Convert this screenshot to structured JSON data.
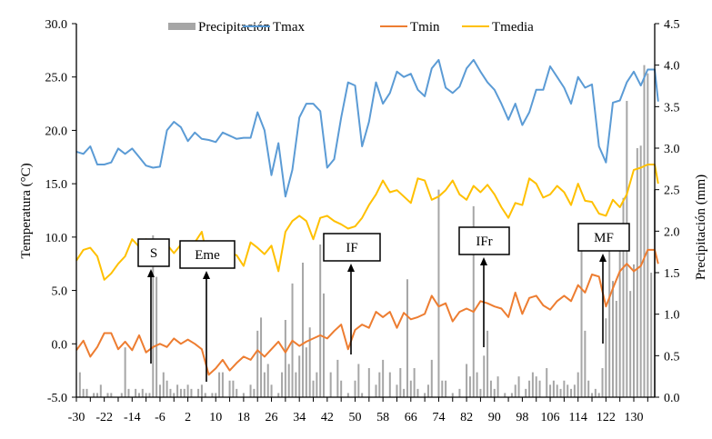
{
  "chart_data": {
    "type": "line",
    "title": "",
    "xlabel": "",
    "ylabel": "Temperatura (°C)",
    "y2label": "Precipitación (mm)",
    "xlim": [
      -30,
      137
    ],
    "ylim": [
      -5,
      30
    ],
    "y2lim": [
      0,
      4.5
    ],
    "x_ticks": [
      "-30",
      "-22",
      "-14",
      "-6",
      "2",
      "10",
      "18",
      "26",
      "34",
      "42",
      "50",
      "58",
      "66",
      "74",
      "82",
      "90",
      "98",
      "106",
      "114",
      "122",
      "130"
    ],
    "y_ticks": [
      "-5.0",
      "0.0",
      "5.0",
      "10.0",
      "15.0",
      "20.0",
      "25.0",
      "30.0"
    ],
    "y2_ticks": [
      "0.0",
      "0.5",
      "1.0",
      "1.5",
      "2.0",
      "2.5",
      "3.0",
      "3.5",
      "4.0",
      "4.5"
    ],
    "legend": [
      "Precipitación",
      "Tmax",
      "Tmin",
      "Tmedia"
    ],
    "legend_position": "top",
    "colors": {
      "Precipitación": "#a6a6a6",
      "Tmax": "#5b9bd5",
      "Tmin": "#ed7d31",
      "Tmedia": "#ffc000"
    },
    "x": [
      -30,
      -28,
      -26,
      -24,
      -22,
      -20,
      -18,
      -16,
      -14,
      -12,
      -10,
      -8,
      -6,
      -4,
      -2,
      0,
      2,
      4,
      6,
      8,
      10,
      12,
      14,
      16,
      18,
      20,
      22,
      24,
      26,
      28,
      30,
      32,
      34,
      36,
      38,
      40,
      42,
      44,
      46,
      48,
      50,
      52,
      54,
      56,
      58,
      60,
      62,
      64,
      66,
      68,
      70,
      72,
      74,
      76,
      78,
      80,
      82,
      84,
      86,
      88,
      90,
      92,
      94,
      96,
      98,
      100,
      102,
      104,
      106,
      108,
      110,
      112,
      114,
      116,
      118,
      120,
      122,
      124,
      126,
      128,
      130,
      132,
      134,
      136,
      137
    ],
    "series": [
      {
        "name": "Tmax",
        "axis": "left",
        "values": [
          18,
          17.8,
          18.5,
          16.8,
          16.8,
          17,
          18.3,
          17.8,
          18.3,
          17.5,
          16.7,
          16.5,
          16.6,
          20,
          20.8,
          20.3,
          19,
          19.8,
          19.2,
          19.1,
          18.9,
          19.8,
          19.5,
          19.2,
          19.3,
          19.3,
          21.7,
          20,
          15.8,
          18.8,
          13.8,
          16.3,
          21.2,
          22.5,
          22.5,
          21.8,
          16.5,
          17.3,
          21.2,
          24.5,
          24.2,
          18.5,
          20.8,
          24.5,
          22.5,
          23.5,
          25.5,
          25,
          25.3,
          23.8,
          23.2,
          25.8,
          26.6,
          24,
          23.5,
          24.1,
          25.8,
          26.6,
          25.5,
          24.5,
          23.8,
          22.5,
          21,
          22.5,
          20.5,
          21.7,
          23.8,
          23.8,
          26,
          25,
          24,
          22.5,
          25,
          24,
          24.3,
          18.5,
          17,
          22.6,
          22.8,
          24.5,
          25.5,
          24.2,
          25.7,
          25.7,
          22.7
        ]
      },
      {
        "name": "Tmin",
        "axis": "left",
        "values": [
          -0.6,
          0.3,
          -1.2,
          -0.3,
          1,
          1,
          -0.5,
          0.2,
          -0.6,
          0.8,
          -0.8,
          -0.3,
          0,
          -0.3,
          0.5,
          0,
          0.4,
          0,
          -0.5,
          -2.9,
          -2.3,
          -1.5,
          -2.5,
          -1.8,
          -1.2,
          -1.5,
          -0.6,
          -1.2,
          -0.5,
          0.2,
          -0.8,
          0.3,
          -0.2,
          0.2,
          0.5,
          0.8,
          0.5,
          1.2,
          1.8,
          -0.5,
          1.3,
          1.8,
          1.5,
          3,
          2.5,
          3,
          1.5,
          2.9,
          2.3,
          2.5,
          2.8,
          4.5,
          3.5,
          3.8,
          2.1,
          3,
          3.3,
          3,
          4,
          3.8,
          3.5,
          3.3,
          2.5,
          4.8,
          2.8,
          4.3,
          4.5,
          3.6,
          3.2,
          4,
          4.5,
          4,
          5.5,
          4.8,
          6.5,
          6.3,
          3.5,
          5.2,
          6.8,
          7.5,
          6.8,
          7.3,
          8.8,
          8.8,
          7.5
        ]
      },
      {
        "name": "Tmedia",
        "axis": "left",
        "values": [
          7.8,
          8.8,
          9,
          8.2,
          6,
          6.6,
          7.5,
          8.2,
          9.8,
          9.1,
          9.8,
          9.4,
          9,
          9.3,
          8.5,
          9.3,
          9.2,
          9.5,
          10.5,
          7.5,
          9.2,
          9,
          8.5,
          8.3,
          7.3,
          9.5,
          9,
          8.4,
          9.2,
          6.8,
          10.5,
          11.5,
          12,
          11.5,
          9.8,
          11.8,
          12,
          11.5,
          11.2,
          10.8,
          11,
          11.8,
          13,
          14,
          15.3,
          14.2,
          14.4,
          13.8,
          13.2,
          15.5,
          15.3,
          13.5,
          13.8,
          14.4,
          15.3,
          14,
          13.5,
          14.8,
          14.2,
          14.9,
          14,
          12.8,
          11.8,
          13.2,
          13,
          15.5,
          15,
          13.7,
          14,
          14.8,
          14.2,
          13,
          15,
          13.4,
          13.3,
          12.2,
          12,
          13.5,
          12.8,
          14,
          16.3,
          16.5,
          16.8,
          16.8,
          15
        ]
      }
    ],
    "precipitation": {
      "name": "Precipitación",
      "axis": "right",
      "type": "bar",
      "points": [
        [
          -29,
          0.3
        ],
        [
          -28,
          0.1
        ],
        [
          -27,
          0.1
        ],
        [
          -25,
          0.05
        ],
        [
          -24,
          0.05
        ],
        [
          -23,
          0.15
        ],
        [
          -21,
          0.05
        ],
        [
          -20,
          0.05
        ],
        [
          -17,
          0.05
        ],
        [
          -16,
          0.6
        ],
        [
          -15,
          0.1
        ],
        [
          -13,
          0.1
        ],
        [
          -12,
          0.05
        ],
        [
          -11,
          0.1
        ],
        [
          -10,
          0.05
        ],
        [
          -9,
          0.05
        ],
        [
          -8,
          1.95
        ],
        [
          -7,
          1.45
        ],
        [
          -6,
          0.15
        ],
        [
          -5,
          0.3
        ],
        [
          -4,
          0.2
        ],
        [
          -3,
          0.1
        ],
        [
          -2,
          0.05
        ],
        [
          -1,
          0.15
        ],
        [
          0,
          0.1
        ],
        [
          1,
          0.1
        ],
        [
          2,
          0.15
        ],
        [
          3,
          0.1
        ],
        [
          5,
          0.1
        ],
        [
          6,
          0.15
        ],
        [
          7,
          0.05
        ],
        [
          9,
          0.05
        ],
        [
          10,
          0.05
        ],
        [
          11,
          0.3
        ],
        [
          12,
          0.3
        ],
        [
          14,
          0.2
        ],
        [
          15,
          0.2
        ],
        [
          16,
          0.1
        ],
        [
          18,
          0.05
        ],
        [
          20,
          0.15
        ],
        [
          21,
          0.1
        ],
        [
          22,
          0.8
        ],
        [
          23,
          0.96
        ],
        [
          24,
          0.3
        ],
        [
          25,
          0.4
        ],
        [
          26,
          0.15
        ],
        [
          28,
          0.05
        ],
        [
          29,
          0.3
        ],
        [
          30,
          0.93
        ],
        [
          31,
          0.4
        ],
        [
          32,
          1.37
        ],
        [
          33,
          0.3
        ],
        [
          34,
          0.5
        ],
        [
          35,
          1.62
        ],
        [
          36,
          0.6
        ],
        [
          37,
          0.84
        ],
        [
          38,
          0.2
        ],
        [
          39,
          0.3
        ],
        [
          40,
          1.84
        ],
        [
          41,
          1.25
        ],
        [
          43,
          0.3
        ],
        [
          45,
          0.45
        ],
        [
          46,
          0.2
        ],
        [
          48,
          0.05
        ],
        [
          50,
          0.2
        ],
        [
          51,
          0.4
        ],
        [
          52,
          0.05
        ],
        [
          54,
          0.35
        ],
        [
          56,
          0.15
        ],
        [
          57,
          0.3
        ],
        [
          58,
          0.45
        ],
        [
          60,
          0.3
        ],
        [
          62,
          0.15
        ],
        [
          63,
          0.35
        ],
        [
          64,
          0.1
        ],
        [
          65,
          1.42
        ],
        [
          66,
          0.2
        ],
        [
          67,
          0.35
        ],
        [
          68,
          0.1
        ],
        [
          70,
          0.05
        ],
        [
          71,
          0.15
        ],
        [
          72,
          0.45
        ],
        [
          74,
          2.5
        ],
        [
          75,
          0.2
        ],
        [
          76,
          0.2
        ],
        [
          78,
          0.05
        ],
        [
          80,
          0.1
        ],
        [
          82,
          0.4
        ],
        [
          83,
          0.25
        ],
        [
          84,
          2.3
        ],
        [
          85,
          0.3
        ],
        [
          86,
          0.1
        ],
        [
          87,
          0.5
        ],
        [
          88,
          0.8
        ],
        [
          89,
          0.2
        ],
        [
          90,
          0.1
        ],
        [
          91,
          0.25
        ],
        [
          93,
          0.05
        ],
        [
          95,
          0.05
        ],
        [
          96,
          0.15
        ],
        [
          97,
          0.25
        ],
        [
          99,
          0.1
        ],
        [
          100,
          0.2
        ],
        [
          101,
          0.3
        ],
        [
          102,
          0.25
        ],
        [
          103,
          0.2
        ],
        [
          105,
          0.35
        ],
        [
          106,
          0.15
        ],
        [
          107,
          0.2
        ],
        [
          108,
          0.15
        ],
        [
          109,
          0.1
        ],
        [
          110,
          0.2
        ],
        [
          111,
          0.15
        ],
        [
          112,
          0.1
        ],
        [
          113,
          0.15
        ],
        [
          114,
          0.3
        ],
        [
          115,
          1.9
        ],
        [
          116,
          0.8
        ],
        [
          117,
          0.2
        ],
        [
          118,
          0.05
        ],
        [
          119,
          0.1
        ],
        [
          120,
          0.05
        ],
        [
          121,
          0.35
        ],
        [
          122,
          0.95
        ],
        [
          123,
          1.8
        ],
        [
          124,
          1.4
        ],
        [
          125,
          1.16
        ],
        [
          126,
          2.0
        ],
        [
          127,
          2.4
        ],
        [
          128,
          3.57
        ],
        [
          129,
          1.28
        ],
        [
          130,
          1.6
        ],
        [
          131,
          3.0
        ],
        [
          132,
          3.03
        ],
        [
          133,
          4.0
        ],
        [
          134,
          3.9
        ],
        [
          135,
          1.5
        ],
        [
          136,
          2.5
        ]
      ]
    },
    "annotations": [
      {
        "label": "S",
        "x": -8
      },
      {
        "label": "Eme",
        "x": 8
      },
      {
        "label": "IF",
        "x": 49
      },
      {
        "label": "IFr",
        "x": 87
      },
      {
        "label": "MF",
        "x": 122
      }
    ]
  }
}
